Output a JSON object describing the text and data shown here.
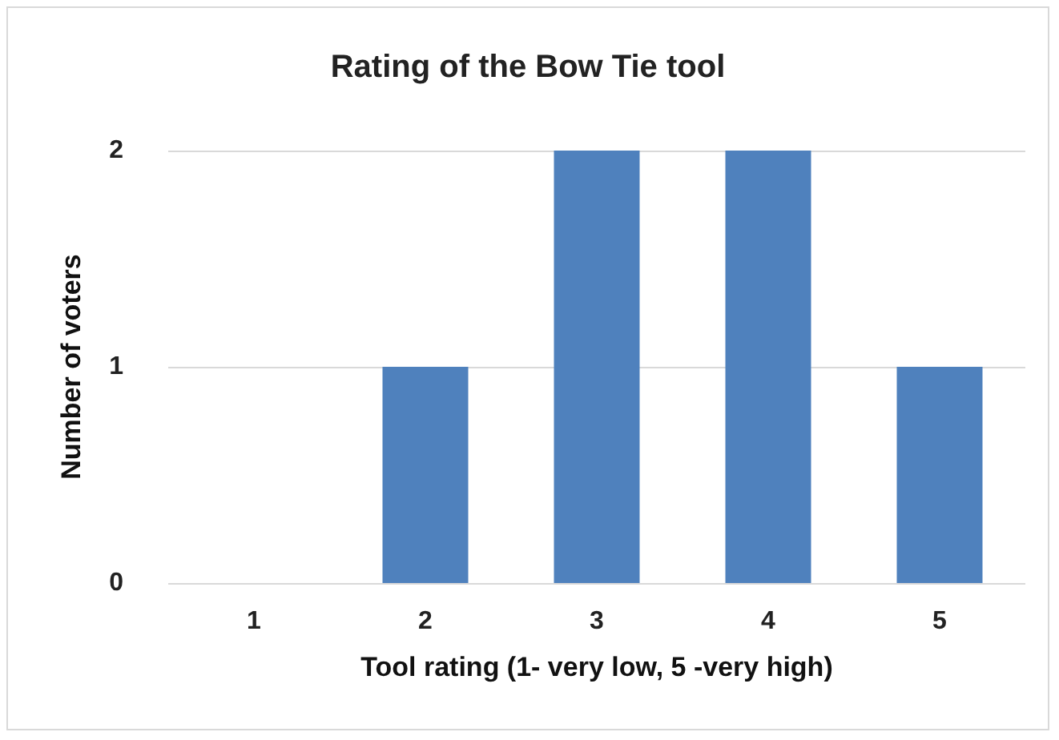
{
  "chart_data": {
    "type": "bar",
    "title": "Rating of the Bow Tie tool",
    "xlabel": "Tool rating (1- very low, 5 -very high)",
    "ylabel": "Number of voters",
    "categories": [
      "1",
      "2",
      "3",
      "4",
      "5"
    ],
    "values": [
      0,
      1,
      2,
      2,
      1
    ],
    "color": "#4f81bd",
    "ylim": [
      0,
      2
    ],
    "yticks": [
      0,
      1,
      2
    ],
    "grid": "y"
  }
}
